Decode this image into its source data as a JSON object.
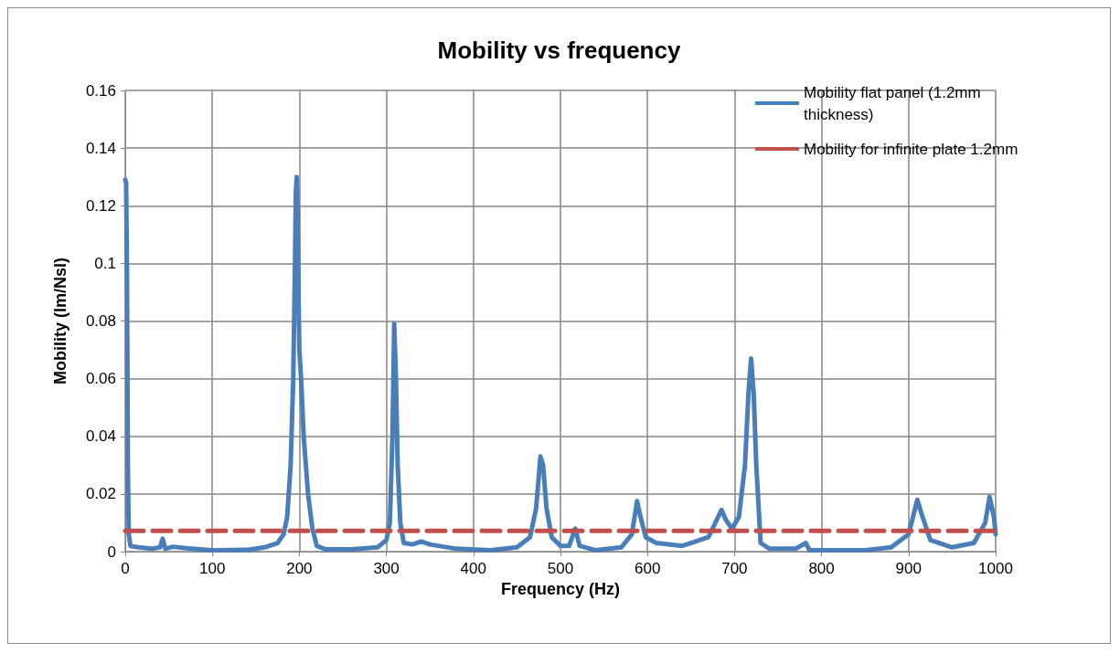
{
  "chart_data": {
    "type": "line",
    "title": "Mobility vs frequency",
    "xlabel": "Frequency (Hz)",
    "ylabel": "Mobility (lm/Nsl)",
    "xlim": [
      0,
      1000
    ],
    "xticks": [
      0,
      100,
      200,
      300,
      400,
      500,
      600,
      700,
      800,
      900,
      1000
    ],
    "ylim": [
      0,
      0.16
    ],
    "yticks": [
      0,
      0.02,
      0.04,
      0.06,
      0.08,
      0.1,
      0.12,
      0.14,
      0.16
    ],
    "grid": true,
    "legend": "top right",
    "marker": "none",
    "series": [
      {
        "name": "Mobility flat panel (1.2mm thickness)",
        "color": "#4a7ebb",
        "line_style": "solid",
        "x": [
          0,
          1,
          2,
          3,
          4,
          6,
          15,
          30,
          40,
          43,
          46,
          55,
          70,
          100,
          140,
          160,
          175,
          182,
          186,
          190,
          193,
          195,
          196,
          197,
          198,
          199,
          200,
          202,
          205,
          210,
          215,
          220,
          230,
          260,
          290,
          300,
          304,
          307,
          309,
          311,
          313,
          316,
          320,
          330,
          340,
          350,
          380,
          420,
          450,
          465,
          472,
          477,
          480,
          484,
          490,
          500,
          510,
          517,
          522,
          540,
          570,
          582,
          588,
          592,
          598,
          610,
          640,
          670,
          685,
          690,
          697,
          705,
          712,
          716,
          719,
          722,
          725,
          730,
          740,
          770,
          782,
          786,
          850,
          880,
          900,
          910,
          915,
          925,
          950,
          975,
          988,
          993,
          998,
          1000
        ],
        "values": [
          0.129,
          0.128,
          0.095,
          0.03,
          0.006,
          0.002,
          0.0015,
          0.001,
          0.0015,
          0.0045,
          0.001,
          0.0017,
          0.0012,
          0.0005,
          0.0006,
          0.0015,
          0.003,
          0.006,
          0.012,
          0.03,
          0.06,
          0.1,
          0.125,
          0.13,
          0.12,
          0.09,
          0.07,
          0.06,
          0.04,
          0.02,
          0.008,
          0.002,
          0.0008,
          0.0008,
          0.0015,
          0.004,
          0.01,
          0.04,
          0.079,
          0.06,
          0.03,
          0.01,
          0.003,
          0.0025,
          0.0035,
          0.0025,
          0.001,
          0.0005,
          0.0015,
          0.005,
          0.015,
          0.033,
          0.03,
          0.015,
          0.005,
          0.002,
          0.002,
          0.008,
          0.002,
          0.0005,
          0.0015,
          0.006,
          0.0175,
          0.012,
          0.005,
          0.003,
          0.002,
          0.005,
          0.0145,
          0.011,
          0.008,
          0.012,
          0.03,
          0.055,
          0.067,
          0.055,
          0.03,
          0.003,
          0.001,
          0.001,
          0.003,
          0.0005,
          0.0005,
          0.0015,
          0.006,
          0.018,
          0.013,
          0.004,
          0.0015,
          0.003,
          0.01,
          0.019,
          0.012,
          0.006
        ]
      },
      {
        "name": "Mobility for infinite plate 1.2mm",
        "color": "#c0504d",
        "line_style": "dashed",
        "x": [
          0,
          1000
        ],
        "values": [
          0.0072,
          0.0072
        ]
      }
    ]
  }
}
